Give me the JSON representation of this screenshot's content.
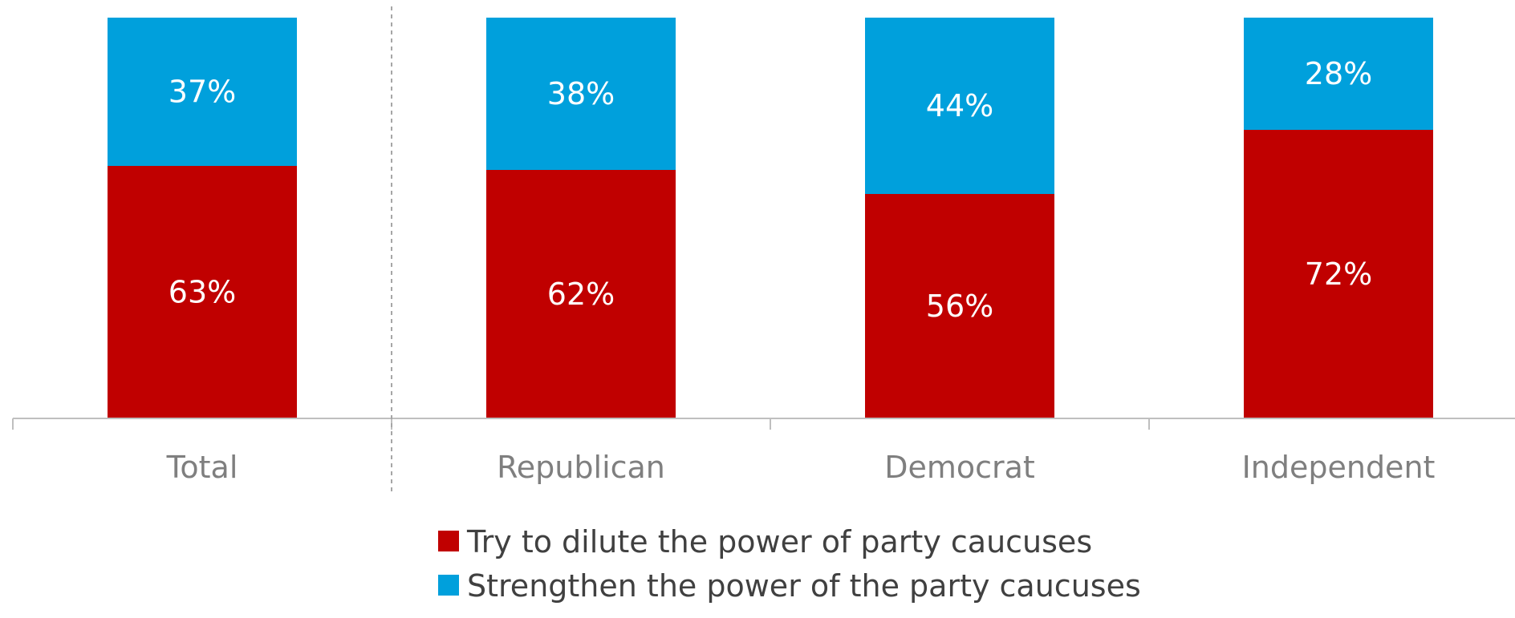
{
  "chart_data": {
    "type": "bar",
    "stacked": true,
    "categories": [
      "Total",
      "Republican",
      "Democrat",
      "Independent"
    ],
    "series": [
      {
        "name": "Try to dilute the power of party caucuses",
        "color": "#C00000",
        "values": [
          63,
          62,
          56,
          72
        ],
        "labels": [
          "63%",
          "62%",
          "56%",
          "72%"
        ]
      },
      {
        "name": "Strengthen the power of the party caucuses",
        "color": "#00A0DC",
        "values": [
          37,
          38,
          44,
          28
        ],
        "labels": [
          "37%",
          "38%",
          "44%",
          "28%"
        ]
      }
    ],
    "ylim": [
      0,
      100
    ],
    "grid": false,
    "legend_position": "bottom",
    "separator_after_category": "Total"
  }
}
